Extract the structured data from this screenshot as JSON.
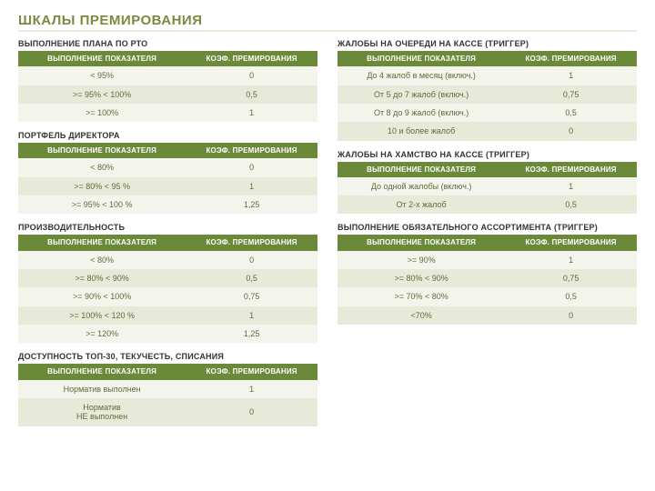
{
  "page_title": "ШКАЛЫ ПРЕМИРОВАНИЯ",
  "header_colors": {
    "bg": "#6a8a3a",
    "text": "#ffffff"
  },
  "row_colors": {
    "even": "#f3f5ec",
    "odd": "#e8ead9",
    "text": "#5e6b3a"
  },
  "col_headers": {
    "metric": "ВЫПОЛНЕНИЕ ПОКАЗАТЕЛЯ",
    "coef": "КОЭФ. ПРЕМИРОВАНИЯ"
  },
  "left": [
    {
      "title": "ВЫПОЛНЕНИЕ ПЛАНА ПО РТО",
      "rows": [
        {
          "metric": "< 95%",
          "coef": "0"
        },
        {
          "metric": ">= 95% < 100%",
          "coef": "0,5"
        },
        {
          "metric": ">= 100%",
          "coef": "1"
        }
      ]
    },
    {
      "title": "ПОРТФЕЛЬ ДИРЕКТОРА",
      "rows": [
        {
          "metric": "< 80%",
          "coef": "0"
        },
        {
          "metric": ">= 80% < 95 %",
          "coef": "1"
        },
        {
          "metric": ">= 95% < 100 %",
          "coef": "1,25"
        }
      ]
    },
    {
      "title": "ПРОИЗВОДИТЕЛЬНОСТЬ",
      "rows": [
        {
          "metric": "< 80%",
          "coef": "0"
        },
        {
          "metric": ">= 80% < 90%",
          "coef": "0,5"
        },
        {
          "metric": ">= 90% < 100%",
          "coef": "0,75"
        },
        {
          "metric": ">= 100% < 120 %",
          "coef": "1"
        },
        {
          "metric": ">= 120%",
          "coef": "1,25"
        }
      ]
    },
    {
      "title": "ДОСТУПНОСТЬ ТОП-30, ТЕКУЧЕСТЬ, СПИСАНИЯ",
      "rows": [
        {
          "metric": "Норматив выполнен",
          "coef": "1"
        },
        {
          "metric": "Норматив\nНЕ выполнен",
          "coef": "0"
        }
      ]
    }
  ],
  "right": [
    {
      "title": "ЖАЛОБЫ НА ОЧЕРЕДИ НА КАССЕ (ТРИГГЕР)",
      "rows": [
        {
          "metric": "До 4 жалоб в месяц (включ.)",
          "coef": "1"
        },
        {
          "metric": "От 5 до 7 жалоб (включ.)",
          "coef": "0,75"
        },
        {
          "metric": "От 8 до 9 жалоб (включ.)",
          "coef": "0,5"
        },
        {
          "metric": "10 и более жалоб",
          "coef": "0"
        }
      ]
    },
    {
      "title": "ЖАЛОБЫ НА ХАМСТВО НА КАССЕ (ТРИГГЕР)",
      "rows": [
        {
          "metric": "До одной жалобы (включ.)",
          "coef": "1"
        },
        {
          "metric": "От 2-х жалоб",
          "coef": "0,5"
        }
      ]
    },
    {
      "title": "ВЫПОЛНЕНИЕ ОБЯЗАТЕЛЬНОГО АССОРТИМЕНТА (ТРИГГЕР)",
      "rows": [
        {
          "metric": ">= 90%",
          "coef": "1"
        },
        {
          "metric": ">= 80% < 90%",
          "coef": "0,75"
        },
        {
          "metric": ">= 70% < 80%",
          "coef": "0,5"
        },
        {
          "metric": "<70%",
          "coef": "0"
        }
      ]
    }
  ]
}
